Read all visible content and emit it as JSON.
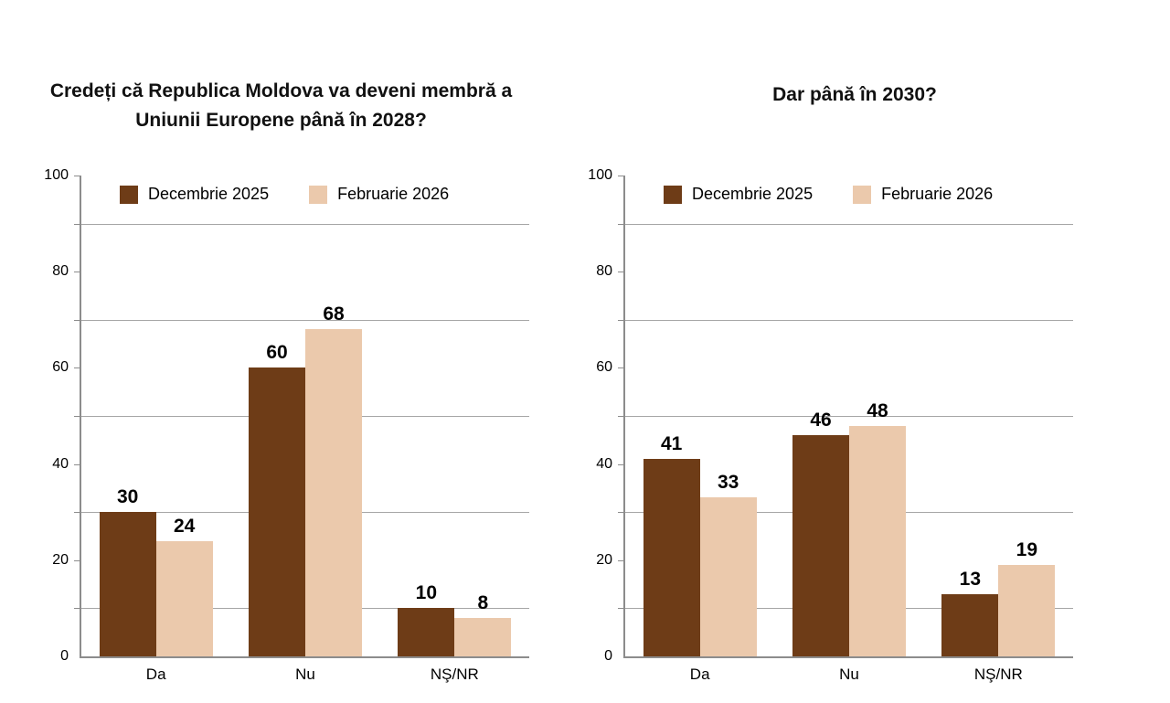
{
  "page": {
    "background": "#ffffff"
  },
  "theme": {
    "axis_color": "#8c8c8c",
    "gridline_color": "#a6a6a6",
    "text_color": "#000000",
    "title_color": "#111111"
  },
  "chart_data": [
    {
      "type": "bar",
      "title": "Credeți că Republica Moldova va deveni membră a Uniunii Europene până în 2028?",
      "categories": [
        "Da",
        "Nu",
        "NŞ/NR"
      ],
      "series": [
        {
          "name": "Decembrie 2025",
          "color": "#6e3c17",
          "values": [
            30,
            60,
            10
          ]
        },
        {
          "name": "Februarie 2026",
          "color": "#ebc9ac",
          "values": [
            24,
            68,
            8
          ]
        }
      ],
      "ylim": [
        0,
        100
      ],
      "yticks": [
        0,
        20,
        40,
        60,
        80,
        100
      ],
      "gridlines": [
        10,
        30,
        50,
        70,
        90
      ],
      "minor_ticks_every": 10,
      "grid": true,
      "legend_position": "top-inside"
    },
    {
      "type": "bar",
      "title": "Dar până în 2030?",
      "categories": [
        "Da",
        "Nu",
        "NŞ/NR"
      ],
      "series": [
        {
          "name": "Decembrie 2025",
          "color": "#6e3c17",
          "values": [
            41,
            46,
            13
          ]
        },
        {
          "name": "Februarie 2026",
          "color": "#ebc9ac",
          "values": [
            33,
            48,
            19
          ]
        }
      ],
      "ylim": [
        0,
        100
      ],
      "yticks": [
        0,
        20,
        40,
        60,
        80,
        100
      ],
      "gridlines": [
        10,
        30,
        50,
        70,
        90
      ],
      "minor_ticks_every": 10,
      "grid": true,
      "legend_position": "top-inside"
    }
  ]
}
